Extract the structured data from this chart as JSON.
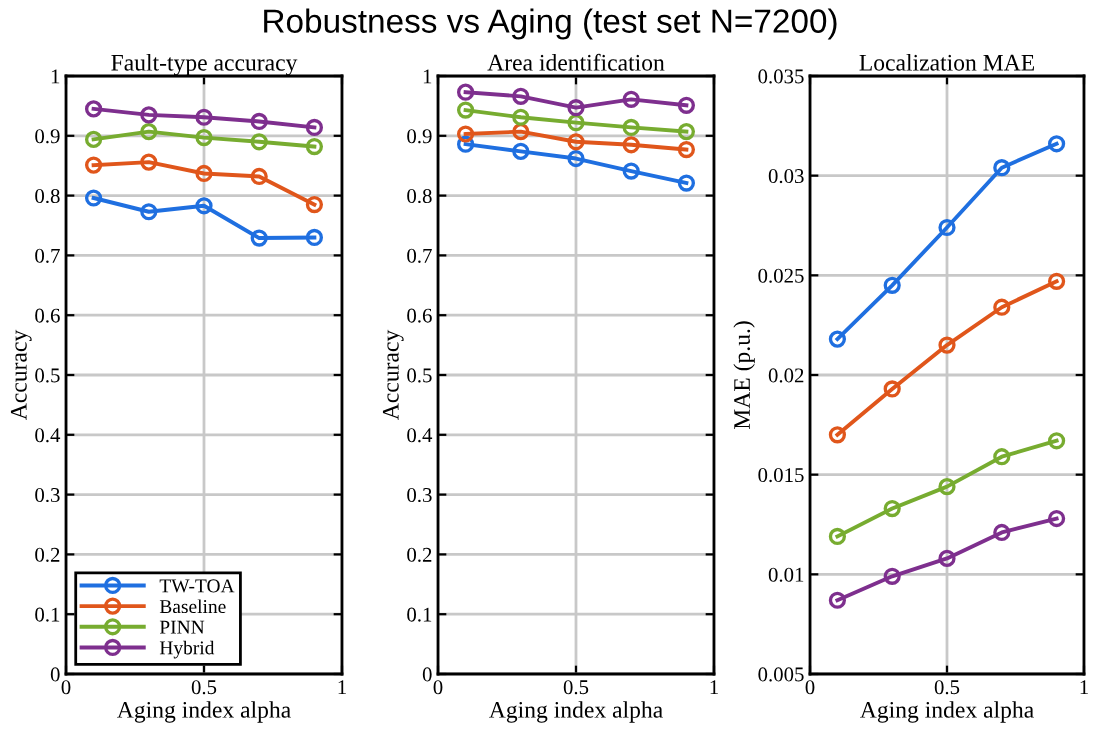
{
  "chart_data": [
    {
      "type": "line",
      "title": "Fault-type accuracy",
      "xlabel": "Aging index alpha",
      "ylabel": "Accuracy",
      "annotations": [
        "Robustness vs Aging (test set N=7200)"
      ],
      "x": [
        0.1,
        0.3,
        0.5,
        0.7,
        0.9
      ],
      "xlim": [
        0,
        1
      ],
      "xticks": [
        0,
        0.5,
        1
      ],
      "ylim": [
        0,
        1
      ],
      "yticks": [
        0,
        0.1,
        0.2,
        0.3,
        0.4,
        0.5,
        0.6,
        0.7,
        0.8,
        0.9,
        1
      ],
      "grid": true,
      "legend": "bottom left",
      "marker": "circle",
      "line_style": "solid",
      "series": [
        {
          "name": "TW-TOA",
          "color": "#1f6fe0",
          "values": [
            0.796,
            0.773,
            0.783,
            0.729,
            0.73
          ]
        },
        {
          "name": "Baseline",
          "color": "#e0561b",
          "values": [
            0.851,
            0.856,
            0.837,
            0.832,
            0.785
          ]
        },
        {
          "name": "PINN",
          "color": "#77ac30",
          "values": [
            0.894,
            0.907,
            0.897,
            0.89,
            0.882
          ]
        },
        {
          "name": "Hybrid",
          "color": "#7e2f8e",
          "values": [
            0.945,
            0.935,
            0.931,
            0.924,
            0.914
          ]
        }
      ]
    },
    {
      "type": "line",
      "title": "Area identification",
      "xlabel": "Aging index alpha",
      "ylabel": "Accuracy",
      "x": [
        0.1,
        0.3,
        0.5,
        0.7,
        0.9
      ],
      "xlim": [
        0,
        1
      ],
      "xticks": [
        0,
        0.5,
        1
      ],
      "ylim": [
        0,
        1
      ],
      "yticks": [
        0,
        0.1,
        0.2,
        0.3,
        0.4,
        0.5,
        0.6,
        0.7,
        0.8,
        0.9,
        1
      ],
      "grid": true,
      "marker": "circle",
      "line_style": "solid",
      "series": [
        {
          "color": "#1f6fe0",
          "values": [
            0.886,
            0.874,
            0.862,
            0.841,
            0.821
          ]
        },
        {
          "color": "#e0561b",
          "values": [
            0.903,
            0.907,
            0.89,
            0.885,
            0.877
          ]
        },
        {
          "color": "#77ac30",
          "values": [
            0.943,
            0.931,
            0.922,
            0.914,
            0.907
          ]
        },
        {
          "color": "#7e2f8e",
          "values": [
            0.973,
            0.966,
            0.947,
            0.961,
            0.951
          ]
        }
      ]
    },
    {
      "type": "line",
      "title": "Localization MAE",
      "xlabel": "Aging index alpha",
      "ylabel": "MAE (p.u.)",
      "x": [
        0.1,
        0.3,
        0.5,
        0.7,
        0.9
      ],
      "xlim": [
        0,
        1
      ],
      "xticks": [
        0,
        0.5,
        1
      ],
      "ylim": [
        0.005,
        0.035
      ],
      "yticks": [
        0.005,
        0.01,
        0.015,
        0.02,
        0.025,
        0.03,
        0.035
      ],
      "grid": true,
      "marker": "circle",
      "line_style": "solid",
      "series": [
        {
          "color": "#1f6fe0",
          "values": [
            0.0218,
            0.0245,
            0.0274,
            0.0304,
            0.0316
          ]
        },
        {
          "color": "#e0561b",
          "values": [
            0.017,
            0.0193,
            0.0215,
            0.0234,
            0.0247
          ]
        },
        {
          "color": "#77ac30",
          "values": [
            0.0119,
            0.0133,
            0.0144,
            0.0159,
            0.0167
          ]
        },
        {
          "color": "#7e2f8e",
          "values": [
            0.0087,
            0.0099,
            0.0108,
            0.0121,
            0.0128
          ]
        }
      ]
    }
  ]
}
